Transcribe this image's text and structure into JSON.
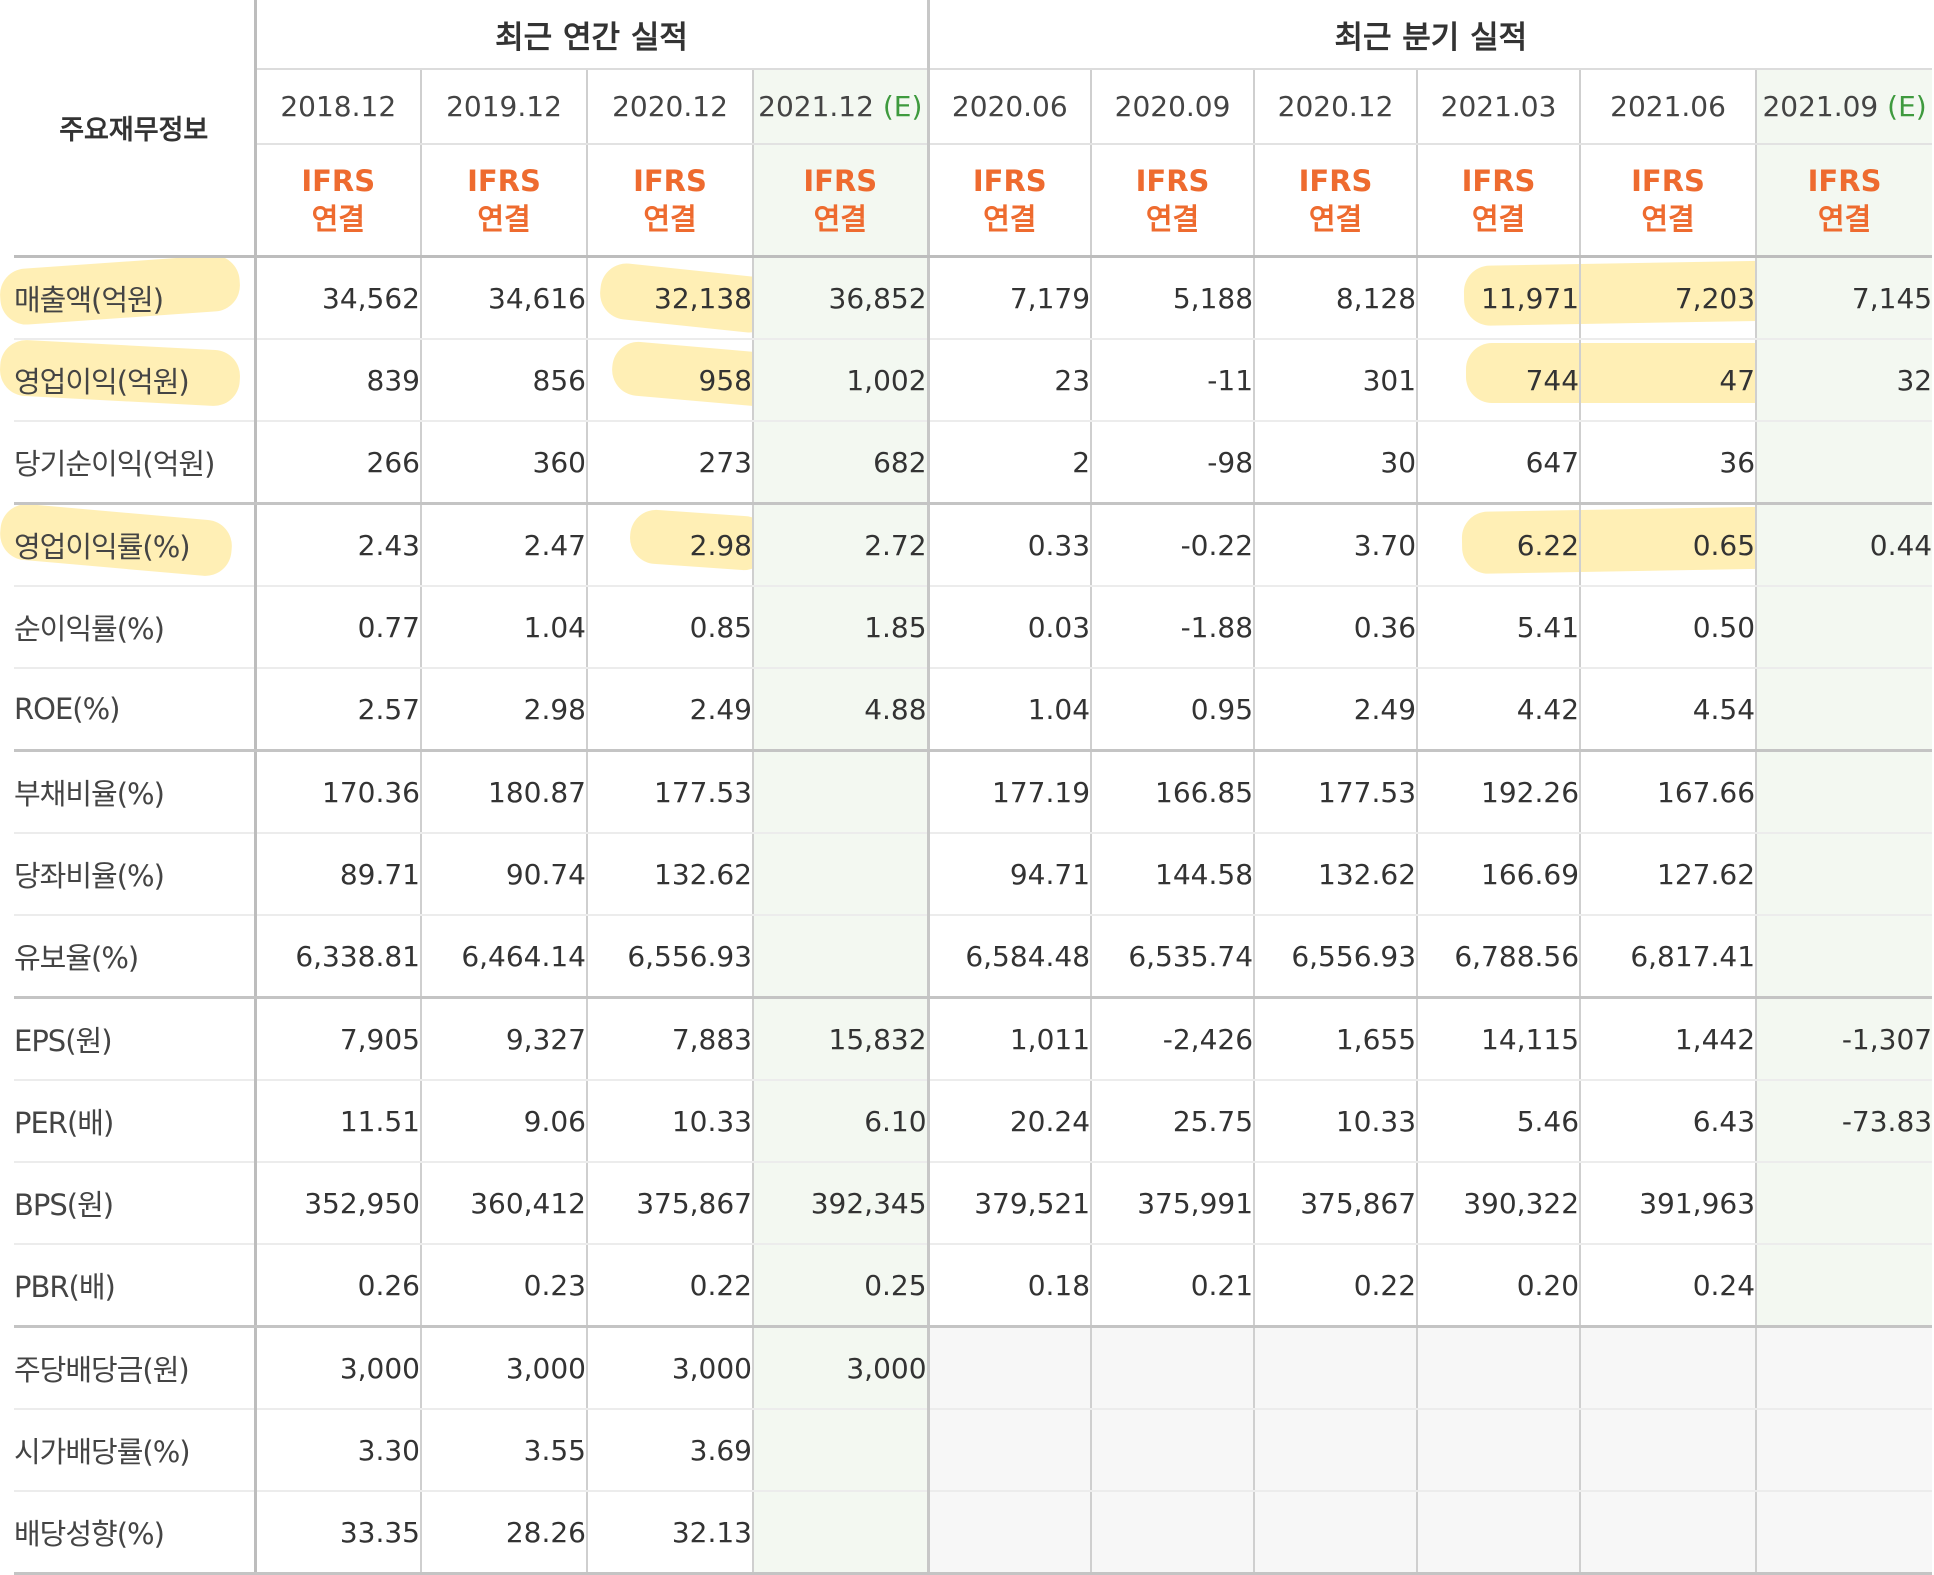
{
  "header": {
    "corner_label": "주요재무정보",
    "annual_group": "최근 연간 실적",
    "quarter_group": "최근 분기 실적",
    "estimate_mark": "(E)",
    "basis_top": "IFRS",
    "basis_bottom": "연결"
  },
  "periods": {
    "annual": [
      "2018.12",
      "2019.12",
      "2020.12",
      "2021.12"
    ],
    "quarter": [
      "2020.06",
      "2020.09",
      "2020.12",
      "2021.03",
      "2021.06",
      "2021.09"
    ]
  },
  "colors": {
    "negative": "#d92a2a",
    "ifrs": "#ee6b2f",
    "estimate_bg": "#f3f8f1",
    "highlight": "#ffd53c"
  },
  "rows": [
    {
      "label": "매출액(억원)",
      "values": [
        "34,562",
        "34,616",
        "32,138",
        "36,852",
        "7,179",
        "5,188",
        "8,128",
        "11,971",
        "7,203",
        "7,145"
      ]
    },
    {
      "label": "영업이익(억원)",
      "values": [
        "839",
        "856",
        "958",
        "1,002",
        "23",
        "-11",
        "301",
        "744",
        "47",
        "32"
      ]
    },
    {
      "label": "당기순이익(억원)",
      "values": [
        "266",
        "360",
        "273",
        "682",
        "2",
        "-98",
        "30",
        "647",
        "36",
        ""
      ]
    },
    {
      "label": "영업이익률(%)",
      "values": [
        "2.43",
        "2.47",
        "2.98",
        "2.72",
        "0.33",
        "-0.22",
        "3.70",
        "6.22",
        "0.65",
        "0.44"
      ]
    },
    {
      "label": "순이익률(%)",
      "values": [
        "0.77",
        "1.04",
        "0.85",
        "1.85",
        "0.03",
        "-1.88",
        "0.36",
        "5.41",
        "0.50",
        ""
      ]
    },
    {
      "label": "ROE(%)",
      "values": [
        "2.57",
        "2.98",
        "2.49",
        "4.88",
        "1.04",
        "0.95",
        "2.49",
        "4.42",
        "4.54",
        ""
      ]
    },
    {
      "label": "부채비율(%)",
      "values": [
        "170.36",
        "180.87",
        "177.53",
        "",
        "177.19",
        "166.85",
        "177.53",
        "192.26",
        "167.66",
        ""
      ]
    },
    {
      "label": "당좌비율(%)",
      "values": [
        "89.71",
        "90.74",
        "132.62",
        "",
        "94.71",
        "144.58",
        "132.62",
        "166.69",
        "127.62",
        ""
      ]
    },
    {
      "label": "유보율(%)",
      "values": [
        "6,338.81",
        "6,464.14",
        "6,556.93",
        "",
        "6,584.48",
        "6,535.74",
        "6,556.93",
        "6,788.56",
        "6,817.41",
        ""
      ]
    },
    {
      "label": "EPS(원)",
      "values": [
        "7,905",
        "9,327",
        "7,883",
        "15,832",
        "1,011",
        "-2,426",
        "1,655",
        "14,115",
        "1,442",
        "-1,307"
      ]
    },
    {
      "label": "PER(배)",
      "values": [
        "11.51",
        "9.06",
        "10.33",
        "6.10",
        "20.24",
        "25.75",
        "10.33",
        "5.46",
        "6.43",
        "-73.83"
      ]
    },
    {
      "label": "BPS(원)",
      "values": [
        "352,950",
        "360,412",
        "375,867",
        "392,345",
        "379,521",
        "375,991",
        "375,867",
        "390,322",
        "391,963",
        ""
      ]
    },
    {
      "label": "PBR(배)",
      "values": [
        "0.26",
        "0.23",
        "0.22",
        "0.25",
        "0.18",
        "0.21",
        "0.22",
        "0.20",
        "0.24",
        ""
      ]
    },
    {
      "label": "주당배당금(원)",
      "values": [
        "3,000",
        "3,000",
        "3,000",
        "3,000",
        "",
        "",
        "",
        "",
        "",
        ""
      ]
    },
    {
      "label": "시가배당률(%)",
      "values": [
        "3.30",
        "3.55",
        "3.69",
        "",
        "",
        "",
        "",
        "",
        "",
        ""
      ]
    },
    {
      "label": "배당성향(%)",
      "values": [
        "33.35",
        "28.26",
        "32.13",
        "",
        "",
        "",
        "",
        "",
        "",
        ""
      ]
    }
  ]
}
